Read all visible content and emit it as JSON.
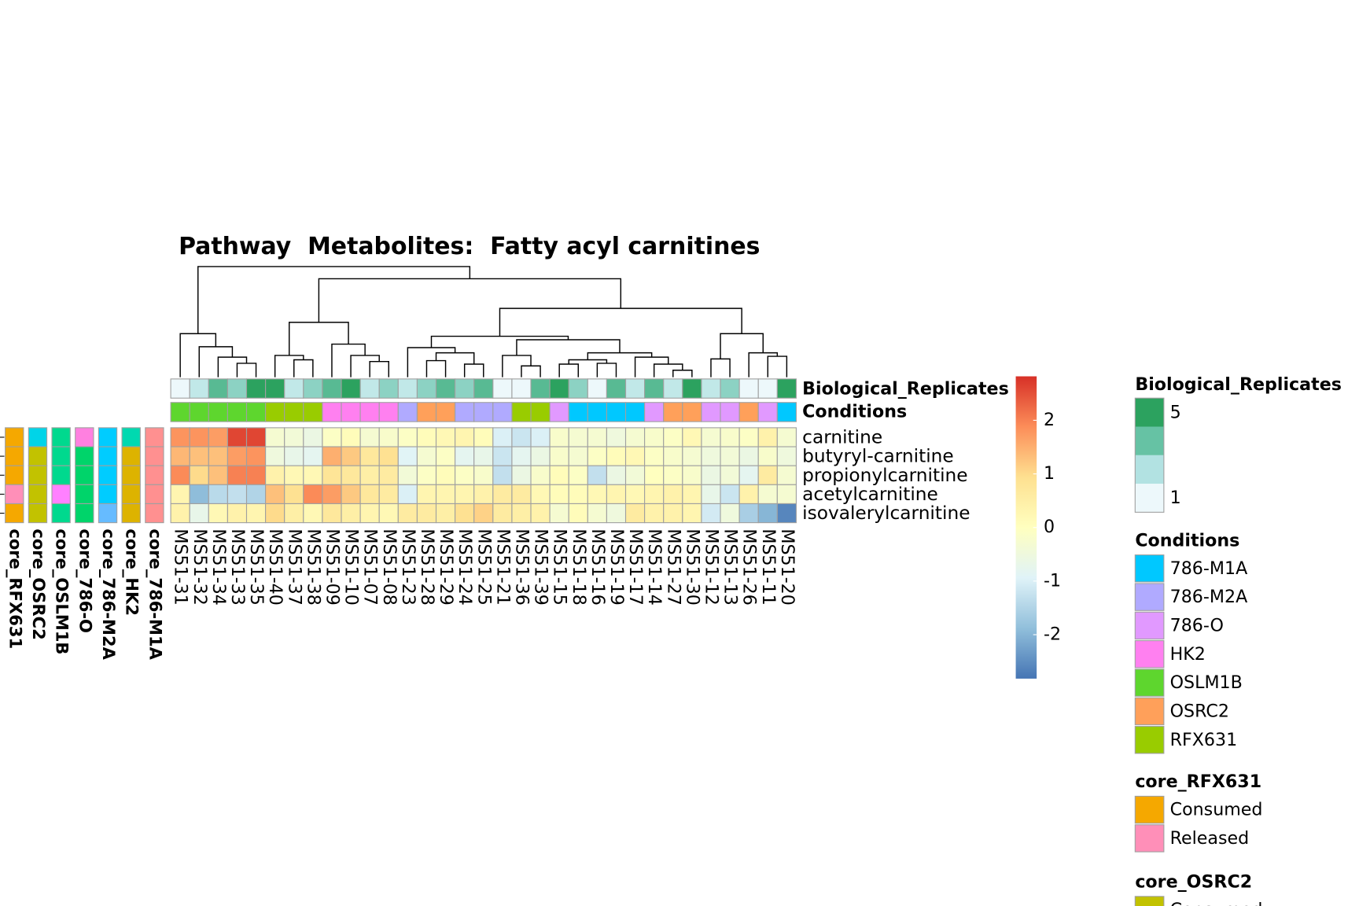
{
  "chart_data": {
    "type": "heatmap",
    "title": "Pathway  Metabolites:  Fatty acyl carnitines",
    "columns": [
      "MS51-31",
      "MS51-32",
      "MS51-34",
      "MS51-33",
      "MS51-35",
      "MS51-40",
      "MS51-37",
      "MS51-38",
      "MS51-09",
      "MS51-10",
      "MS51-07",
      "MS51-08",
      "MS51-23",
      "MS51-28",
      "MS51-29",
      "MS51-24",
      "MS51-25",
      "MS51-21",
      "MS51-36",
      "MS51-39",
      "MS51-15",
      "MS51-18",
      "MS51-16",
      "MS51-19",
      "MS51-17",
      "MS51-14",
      "MS51-27",
      "MS51-30",
      "MS51-12",
      "MS51-13",
      "MS51-26",
      "MS51-11",
      "MS51-20"
    ],
    "rows": [
      "carnitine",
      "butyryl-carnitine",
      "propionylcarnitine",
      "acetylcarnitine",
      "isovalerylcarnitine"
    ],
    "values": [
      [
        1.8,
        1.8,
        1.7,
        2.6,
        2.6,
        -0.3,
        -0.4,
        -0.6,
        -0.1,
        0.1,
        -0.3,
        -0.2,
        -0.1,
        0.1,
        0.2,
        0.3,
        0.1,
        -1.0,
        -1.2,
        -1.0,
        -0.2,
        -0.3,
        -0.3,
        -0.5,
        -0.3,
        -0.2,
        -0.1,
        0.2,
        -0.3,
        -0.2,
        -0.1,
        0.4,
        -0.3
      ],
      [
        1.4,
        1.3,
        1.3,
        1.7,
        1.8,
        -0.5,
        -0.7,
        -0.8,
        1.5,
        1.2,
        0.7,
        0.9,
        -0.9,
        -0.3,
        -0.1,
        -0.8,
        -0.7,
        -1.2,
        -0.8,
        -0.6,
        -0.2,
        -0.3,
        -0.1,
        0.1,
        0.2,
        -0.1,
        -0.2,
        -0.3,
        -0.5,
        -0.4,
        -0.6,
        -0.2,
        -0.5
      ],
      [
        1.9,
        1.0,
        1.3,
        2.0,
        2.0,
        0.4,
        0.2,
        0.2,
        0.8,
        0.7,
        0.5,
        0.6,
        -0.4,
        -0.1,
        0.1,
        -0.1,
        -0.2,
        -1.3,
        -0.6,
        -0.2,
        0.1,
        -0.1,
        -1.3,
        -0.6,
        -0.4,
        0.0,
        -0.1,
        -0.2,
        -0.6,
        -0.4,
        -0.8,
        0.6,
        -0.3
      ],
      [
        0.3,
        -1.9,
        -1.4,
        -1.3,
        -1.5,
        1.3,
        0.9,
        1.9,
        1.7,
        1.2,
        0.7,
        0.6,
        -1.0,
        0.3,
        0.3,
        0.3,
        0.4,
        0.6,
        0.6,
        0.2,
        0.1,
        0.1,
        0.2,
        0.3,
        0.2,
        0.3,
        0.4,
        0.3,
        -0.7,
        -1.2,
        0.4,
        -0.3,
        -0.3
      ],
      [
        0.4,
        -0.7,
        0.2,
        0.4,
        0.3,
        1.0,
        0.5,
        0.2,
        0.7,
        0.5,
        0.3,
        0.2,
        0.6,
        0.6,
        0.5,
        0.9,
        1.1,
        0.6,
        0.5,
        0.4,
        -0.3,
        0.1,
        -0.3,
        -0.5,
        0.6,
        0.4,
        0.4,
        0.3,
        -1.1,
        -0.5,
        -1.6,
        -2.0,
        -2.6
      ]
    ],
    "color_scale": {
      "lim": [
        -2.82,
        2.82
      ],
      "ticks": [
        2,
        1,
        0,
        -1,
        -2
      ],
      "colors": [
        "#4575b4",
        "#91bfdb",
        "#e0f3f8",
        "#ffffbf",
        "#fee090",
        "#fc8d59",
        "#d73027"
      ]
    },
    "dendrogram": {
      "merge": [
        [
          -4,
          -5
        ],
        [
          -3,
          1
        ],
        [
          -2,
          2
        ],
        [
          -1,
          3
        ],
        [
          -7,
          -8
        ],
        [
          -6,
          5
        ],
        [
          -11,
          -12
        ],
        [
          -10,
          7
        ],
        [
          -9,
          8
        ],
        [
          6,
          9
        ],
        [
          -14,
          -15
        ],
        [
          -16,
          -17
        ],
        [
          11,
          12
        ],
        [
          -13,
          13
        ],
        [
          -19,
          -20
        ],
        [
          -18,
          15
        ],
        [
          -21,
          -22
        ],
        [
          -23,
          -24
        ],
        [
          17,
          18
        ],
        [
          -27,
          -28
        ],
        [
          -26,
          20
        ],
        [
          -25,
          21
        ],
        [
          19,
          22
        ],
        [
          16,
          23
        ],
        [
          14,
          24
        ],
        [
          -29,
          -30
        ],
        [
          -32,
          -33
        ],
        [
          -31,
          27
        ],
        [
          26,
          28
        ],
        [
          25,
          29
        ],
        [
          10,
          30
        ],
        [
          4,
          31
        ]
      ],
      "height": [
        16,
        23,
        35,
        50,
        20,
        25,
        18,
        25,
        38,
        63,
        19,
        15,
        28,
        34,
        13,
        25,
        15,
        16,
        20,
        8,
        15,
        23,
        28,
        43,
        47,
        21,
        24,
        28,
        50,
        79,
        113,
        127
      ]
    },
    "replicates": {
      "name": "Biological_Replicates",
      "legend_title": "Biological_Replicates",
      "values": [
        1,
        2,
        4,
        3,
        5,
        5,
        2,
        3,
        4,
        5,
        2,
        3,
        2,
        3,
        4,
        3,
        4,
        1,
        1,
        4,
        5,
        3,
        1,
        4,
        2,
        4,
        2,
        5,
        2,
        3,
        1,
        1,
        5
      ],
      "ticks": [
        5,
        1
      ],
      "colors": [
        "#edf8fb",
        "#b2e2e2",
        "#66c2a4",
        "#2ca25f"
      ]
    },
    "conditions": {
      "name": "Conditions",
      "values": [
        "OSLM1B",
        "OSLM1B",
        "OSLM1B",
        "OSLM1B",
        "OSLM1B",
        "RFX631",
        "RFX631",
        "RFX631",
        "HK2",
        "HK2",
        "HK2",
        "HK2",
        "786-M2A",
        "OSRC2",
        "OSRC2",
        "786-M2A",
        "786-M2A",
        "786-M2A",
        "RFX631",
        "RFX631",
        "786-O",
        "786-M1A",
        "786-M1A",
        "786-M1A",
        "786-M1A",
        "786-O",
        "OSRC2",
        "OSRC2",
        "786-O",
        "786-O",
        "OSRC2",
        "786-O",
        "786-M1A"
      ]
    },
    "legends": [
      {
        "title": "Conditions",
        "items": [
          {
            "label": "786-M1A",
            "color": "#00c8ff"
          },
          {
            "label": "786-M2A",
            "color": "#b0aaff"
          },
          {
            "label": "786-O",
            "color": "#e199ff"
          },
          {
            "label": "HK2",
            "color": "#ff80f0"
          },
          {
            "label": "OSLM1B",
            "color": "#5ed62e"
          },
          {
            "label": "OSRC2",
            "color": "#ffa05a"
          },
          {
            "label": "RFX631",
            "color": "#99cc00"
          }
        ]
      },
      {
        "title": "core_RFX631",
        "items": [
          {
            "label": "Consumed",
            "color": "#f5a800"
          },
          {
            "label": "Released",
            "color": "#ff8fb8"
          }
        ]
      },
      {
        "title": "core_OSRC2",
        "items": [
          {
            "label": "Consumed",
            "color": "#c2c200"
          }
        ]
      }
    ],
    "row_annotations": [
      {
        "name": "core_RFX631",
        "colors": [
          "#f5a800",
          "#f5a800",
          "#f5a800",
          "#ff8fb8",
          "#f5a800"
        ]
      },
      {
        "name": "core_OSRC2",
        "colors": [
          "#00d4e8",
          "#c2c200",
          "#c2c200",
          "#c2c200",
          "#c2c200"
        ]
      },
      {
        "name": "core_OSLM1B",
        "colors": [
          "#00d98e",
          "#00d98e",
          "#00d98e",
          "#ff80ff",
          "#00d98e"
        ]
      },
      {
        "name": "core_786-O",
        "colors": [
          "#ff80e0",
          "#00d46a",
          "#00d46a",
          "#00d46a",
          "#00d46a"
        ]
      },
      {
        "name": "core_786-M2A",
        "colors": [
          "#00ccff",
          "#00ccff",
          "#00ccff",
          "#00ccff",
          "#66bbff"
        ]
      },
      {
        "name": "core_HK2",
        "colors": [
          "#00d9b0",
          "#ddb300",
          "#ddb300",
          "#ddb300",
          "#ddb300"
        ]
      },
      {
        "name": "core_786-M1A",
        "colors": [
          "#ff9090",
          "#ff9090",
          "#ff9090",
          "#ff9090",
          "#ff9090"
        ]
      }
    ]
  }
}
